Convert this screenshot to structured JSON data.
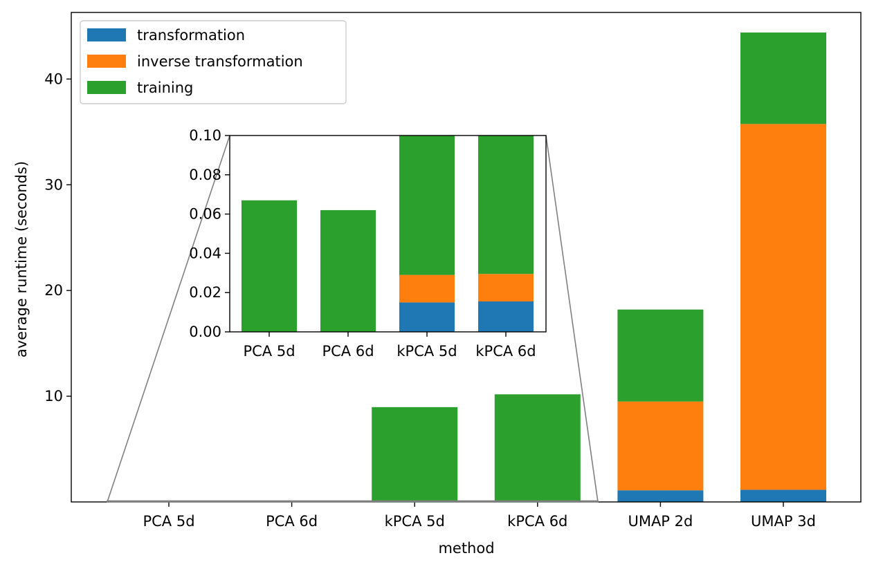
{
  "chart_data": {
    "type": "bar",
    "stacked": true,
    "categories": [
      "PCA 5d",
      "PCA 6d",
      "kPCA 5d",
      "kPCA 6d",
      "UMAP 2d",
      "UMAP 3d"
    ],
    "series": [
      {
        "name": "transformation",
        "color": "#1f77b4",
        "values": [
          0.0,
          0.0,
          0.015,
          0.0155,
          1.1,
          1.15
        ]
      },
      {
        "name": "inverse transformation",
        "color": "#ff7f0e",
        "values": [
          0.0,
          0.0,
          0.014,
          0.014,
          8.4,
          34.6
        ]
      },
      {
        "name": "training",
        "color": "#2ca02c",
        "values": [
          0.067,
          0.062,
          8.94,
          10.15,
          8.7,
          8.65
        ]
      }
    ],
    "xlabel": "method",
    "ylabel": "average runtime (seconds)",
    "ylim": [
      0,
      46.3
    ],
    "yticks": [
      10,
      20,
      30,
      40
    ],
    "legend": "top-left",
    "grid": false,
    "inset": {
      "categories": [
        "PCA 5d",
        "PCA 6d",
        "kPCA 5d",
        "kPCA 6d"
      ],
      "ylim": [
        0,
        0.1
      ],
      "yticks": [
        "0.00",
        "0.02",
        "0.04",
        "0.06",
        "0.08",
        "0.10"
      ],
      "zoom_connectors": true
    }
  }
}
